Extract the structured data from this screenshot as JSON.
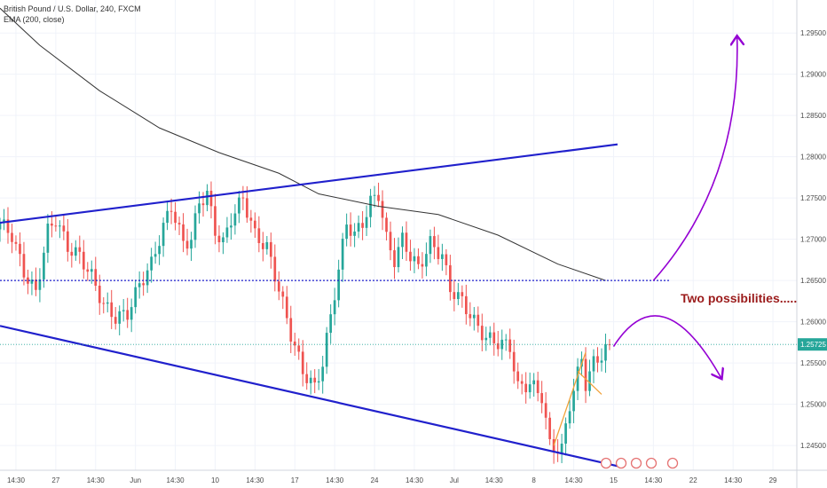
{
  "legend": {
    "symbol_title": "British Pound / U.S. Dollar, 240, FXCM",
    "indicator": "EMA (200, close)"
  },
  "colors": {
    "up": "#26a69a",
    "down": "#ef5350",
    "channel": "#2020cc",
    "ema": "#333333",
    "annotation": "#9b1b1b",
    "arrow": "#9400d3",
    "price_badge": "#26a69a",
    "wedge": "#f2a23a"
  },
  "chart_data": {
    "type": "candlestick",
    "symbol": "GBPUSD",
    "timeframe": "240",
    "y_axis": {
      "range": [
        1.242,
        1.299
      ],
      "ticks": [
        "1.29500",
        "1.29000",
        "1.28500",
        "1.28000",
        "1.27500",
        "1.27000",
        "1.26500",
        "1.26000",
        "1.25500",
        "1.25000",
        "1.24500"
      ],
      "tick_values": [
        1.295,
        1.29,
        1.285,
        1.28,
        1.275,
        1.27,
        1.265,
        1.26,
        1.255,
        1.25,
        1.245
      ]
    },
    "x_axis": {
      "ticks": [
        "14:30",
        "27",
        "14:30",
        "Jun",
        "14:30",
        "10",
        "14:30",
        "17",
        "14:30",
        "24",
        "14:30",
        "Jul",
        "14:30",
        "8",
        "14:30",
        "15",
        "14:30",
        "22",
        "14:30",
        "29"
      ],
      "range_index": [
        0,
        200
      ],
      "tick_index": [
        4,
        14,
        24,
        34,
        44,
        54,
        64,
        74,
        84,
        94,
        104,
        114,
        124,
        134,
        144,
        154,
        164,
        174,
        184,
        194
      ]
    },
    "current_price": "1.25725",
    "current_price_value": 1.25725,
    "ohlc_anchors": [
      {
        "i": 0,
        "p": 1.272
      },
      {
        "i": 3,
        "p": 1.2705
      },
      {
        "i": 6,
        "p": 1.266
      },
      {
        "i": 9,
        "p": 1.2635
      },
      {
        "i": 12,
        "p": 1.271
      },
      {
        "i": 14,
        "p": 1.2725
      },
      {
        "i": 17,
        "p": 1.269
      },
      {
        "i": 20,
        "p": 1.268
      },
      {
        "i": 23,
        "p": 1.2655
      },
      {
        "i": 26,
        "p": 1.262
      },
      {
        "i": 29,
        "p": 1.2605
      },
      {
        "i": 32,
        "p": 1.261
      },
      {
        "i": 35,
        "p": 1.2645
      },
      {
        "i": 38,
        "p": 1.267
      },
      {
        "i": 41,
        "p": 1.2715
      },
      {
        "i": 43,
        "p": 1.274
      },
      {
        "i": 46,
        "p": 1.2695
      },
      {
        "i": 48,
        "p": 1.27
      },
      {
        "i": 50,
        "p": 1.2745
      },
      {
        "i": 52,
        "p": 1.2755
      },
      {
        "i": 54,
        "p": 1.271
      },
      {
        "i": 56,
        "p": 1.2695
      },
      {
        "i": 58,
        "p": 1.2725
      },
      {
        "i": 61,
        "p": 1.275
      },
      {
        "i": 64,
        "p": 1.2705
      },
      {
        "i": 67,
        "p": 1.269
      },
      {
        "i": 70,
        "p": 1.264
      },
      {
        "i": 73,
        "p": 1.2585
      },
      {
        "i": 76,
        "p": 1.254
      },
      {
        "i": 79,
        "p": 1.252
      },
      {
        "i": 81,
        "p": 1.255
      },
      {
        "i": 84,
        "p": 1.2635
      },
      {
        "i": 87,
        "p": 1.272
      },
      {
        "i": 89,
        "p": 1.2705
      },
      {
        "i": 91,
        "p": 1.272
      },
      {
        "i": 93,
        "p": 1.2745
      },
      {
        "i": 95,
        "p": 1.2755
      },
      {
        "i": 97,
        "p": 1.27
      },
      {
        "i": 99,
        "p": 1.2675
      },
      {
        "i": 101,
        "p": 1.27
      },
      {
        "i": 103,
        "p": 1.268
      },
      {
        "i": 105,
        "p": 1.2665
      },
      {
        "i": 108,
        "p": 1.2695
      },
      {
        "i": 111,
        "p": 1.268
      },
      {
        "i": 113,
        "p": 1.264
      },
      {
        "i": 116,
        "p": 1.2625
      },
      {
        "i": 119,
        "p": 1.26
      },
      {
        "i": 122,
        "p": 1.258
      },
      {
        "i": 125,
        "p": 1.2575
      },
      {
        "i": 128,
        "p": 1.257
      },
      {
        "i": 130,
        "p": 1.252
      },
      {
        "i": 133,
        "p": 1.2525
      },
      {
        "i": 136,
        "p": 1.251
      },
      {
        "i": 138,
        "p": 1.245
      },
      {
        "i": 141,
        "p": 1.2445
      },
      {
        "i": 143,
        "p": 1.25
      },
      {
        "i": 146,
        "p": 1.2555
      },
      {
        "i": 147,
        "p": 1.2525
      },
      {
        "i": 149,
        "p": 1.255
      },
      {
        "i": 151,
        "p": 1.256
      },
      {
        "i": 153,
        "p": 1.25725
      }
    ],
    "ema_points": [
      {
        "i": 0,
        "p": 1.298
      },
      {
        "i": 10,
        "p": 1.2935
      },
      {
        "i": 25,
        "p": 1.288
      },
      {
        "i": 40,
        "p": 1.2835
      },
      {
        "i": 55,
        "p": 1.2805
      },
      {
        "i": 70,
        "p": 1.278
      },
      {
        "i": 80,
        "p": 1.2755
      },
      {
        "i": 95,
        "p": 1.274
      },
      {
        "i": 110,
        "p": 1.273
      },
      {
        "i": 125,
        "p": 1.2705
      },
      {
        "i": 140,
        "p": 1.267
      },
      {
        "i": 152,
        "p": 1.265
      }
    ],
    "channel_upper": [
      {
        "i": 0,
        "p": 1.272
      },
      {
        "i": 155,
        "p": 1.2815
      }
    ],
    "channel_lower": [
      {
        "i": 0,
        "p": 1.2595
      },
      {
        "i": 155,
        "p": 1.2425
      }
    ],
    "resistance_dotted": {
      "p": 1.265,
      "from_i": 0,
      "to_i": 168
    },
    "wedge_lines": [
      [
        {
          "i": 139,
          "p": 1.245
        },
        {
          "i": 147,
          "p": 1.2563
        }
      ],
      [
        {
          "i": 145,
          "p": 1.254
        },
        {
          "i": 151,
          "p": 1.2512
        }
      ]
    ],
    "annotations": [
      {
        "type": "text",
        "text": "Two possibilities....."
      },
      {
        "type": "arrow",
        "direction": "up",
        "path": [
          {
            "i": 164,
            "p": 1.265
          },
          {
            "i": 186,
            "p": 1.277
          },
          {
            "i": 185,
            "p": 1.2945
          }
        ]
      },
      {
        "type": "arrow",
        "direction": "down",
        "path": [
          {
            "i": 154,
            "p": 1.257
          },
          {
            "i": 166,
            "p": 1.266
          },
          {
            "i": 181,
            "p": 1.2532
          }
        ]
      }
    ]
  }
}
